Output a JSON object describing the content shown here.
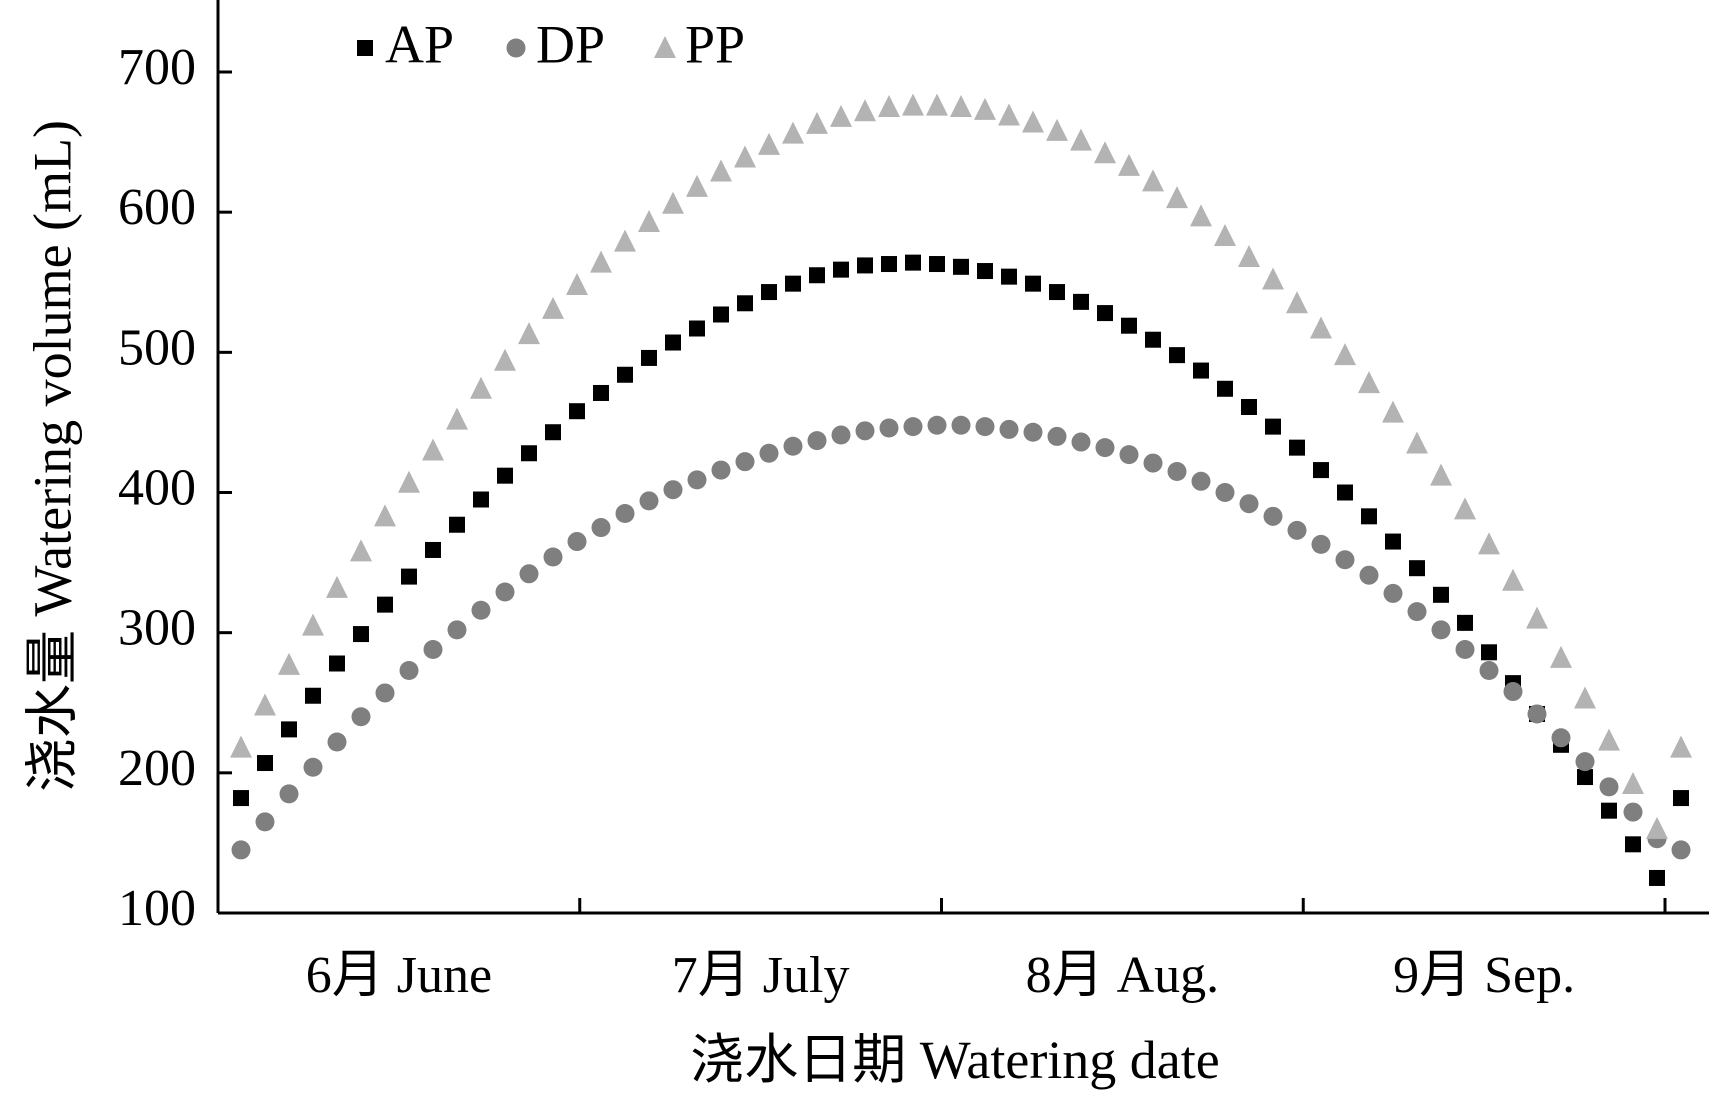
{
  "chart_data": {
    "type": "scatter",
    "ylabel": "浇水量 Watering volume (mL)",
    "xlabel": "浇水日期 Watering date",
    "ylim": [
      100,
      750
    ],
    "yticks": [
      100,
      200,
      300,
      400,
      500,
      600,
      700
    ],
    "months": [
      "6月 June",
      "7月 July",
      "8月 Aug.",
      "9月 Sep."
    ],
    "x_description": "61 evenly spaced watering events across June–September (index 0–60)",
    "legend_position": "top-left",
    "grid": false,
    "series": [
      {
        "name": "AP",
        "marker": "square",
        "color": "#000000",
        "values": [
          182,
          207,
          231,
          255,
          278,
          299,
          320,
          340,
          359,
          377,
          395,
          412,
          428,
          443,
          458,
          471,
          484,
          496,
          507,
          517,
          527,
          535,
          543,
          549,
          555,
          559,
          562,
          563,
          564,
          563,
          561,
          558,
          554,
          549,
          543,
          536,
          528,
          519,
          509,
          498,
          487,
          474,
          461,
          447,
          432,
          416,
          400,
          383,
          365,
          346,
          327,
          307,
          286,
          264,
          242,
          220,
          197,
          173,
          149,
          125,
          182
        ]
      },
      {
        "name": "DP",
        "marker": "circle",
        "color": "#7f7f7f",
        "values": [
          145,
          165,
          185,
          204,
          222,
          240,
          257,
          273,
          288,
          302,
          316,
          329,
          342,
          354,
          365,
          375,
          385,
          394,
          402,
          409,
          416,
          422,
          428,
          433,
          437,
          441,
          444,
          446,
          447,
          448,
          448,
          447,
          445,
          443,
          440,
          436,
          432,
          427,
          421,
          415,
          408,
          400,
          392,
          383,
          373,
          363,
          352,
          341,
          328,
          315,
          302,
          288,
          273,
          258,
          242,
          225,
          208,
          190,
          172,
          153,
          145
        ]
      },
      {
        "name": "PP",
        "marker": "triangle",
        "color": "#b3b3b3",
        "values": [
          218,
          248,
          277,
          305,
          332,
          358,
          383,
          407,
          430,
          452,
          474,
          494,
          513,
          531,
          548,
          564,
          579,
          593,
          606,
          618,
          629,
          639,
          648,
          656,
          663,
          668,
          672,
          675,
          676,
          676,
          675,
          673,
          669,
          664,
          658,
          651,
          642,
          633,
          622,
          610,
          597,
          583,
          568,
          552,
          535,
          517,
          498,
          478,
          457,
          435,
          412,
          388,
          363,
          337,
          310,
          282,
          253,
          223,
          192,
          160,
          218
        ]
      }
    ]
  }
}
